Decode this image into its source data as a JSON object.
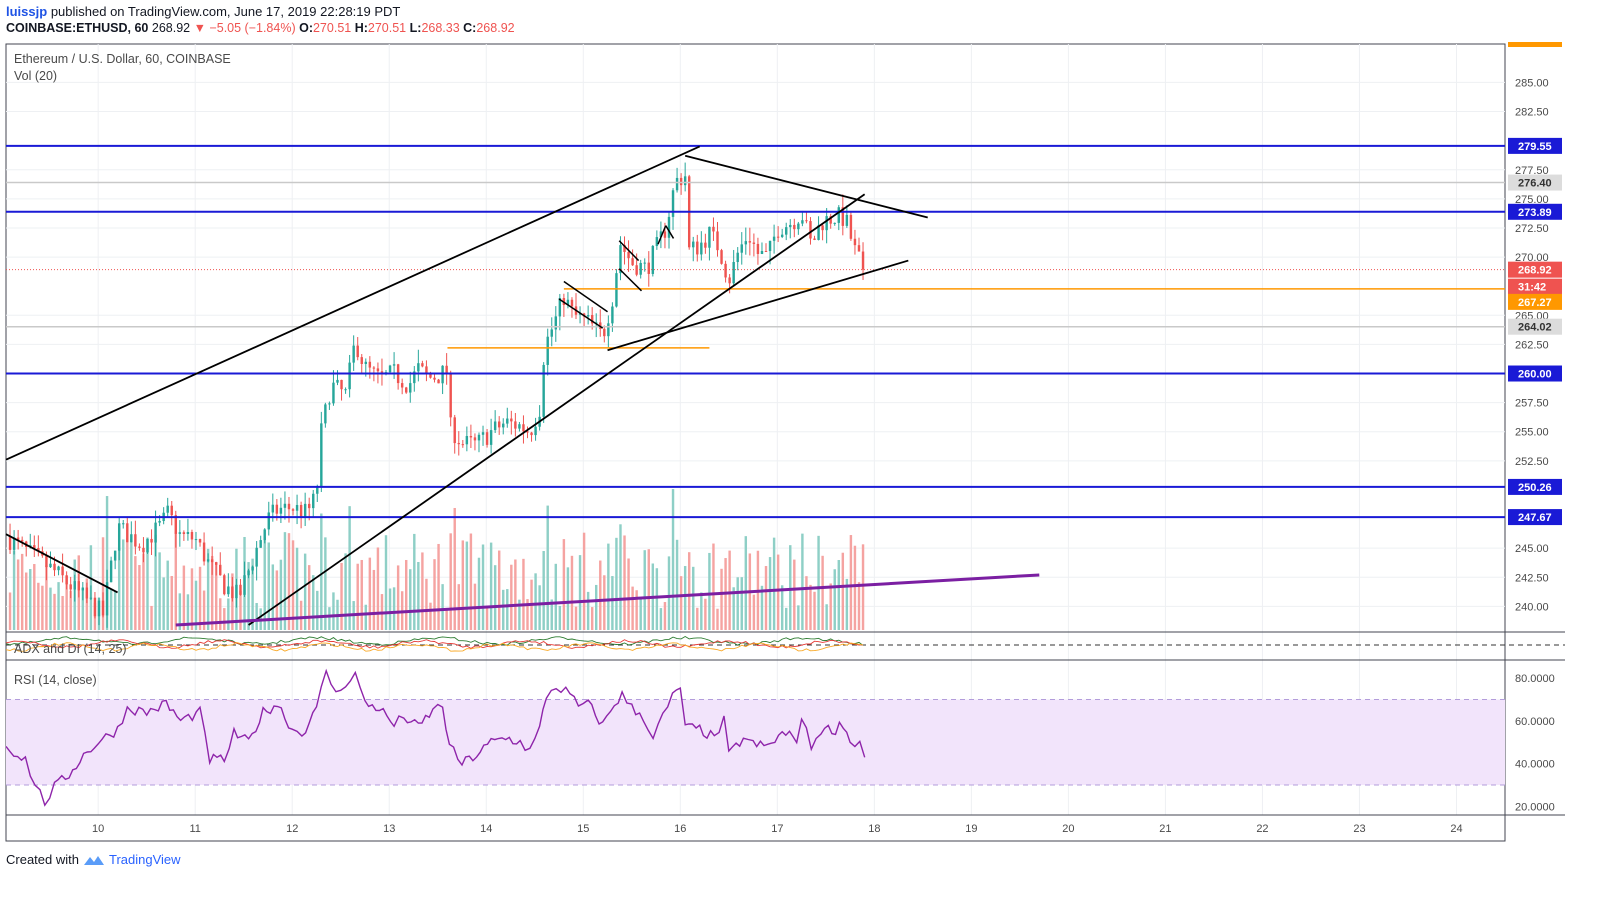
{
  "header": {
    "author": "luissjp",
    "published": "published on TradingView.com, June 17, 2019 22:28:19 PDT",
    "symbol_line": "COINBASE:ETHUSD, 60",
    "last": "268.92",
    "change": "▼ −5.05 (−1.84%)",
    "o_label": "O:",
    "o": "270.51",
    "h_label": "H:",
    "h": "270.51",
    "l_label": "L:",
    "l": "268.33",
    "c_label": "C:",
    "c": "268.92"
  },
  "footer": {
    "created_with": "Created with",
    "brand": "TradingView"
  },
  "colors": {
    "up": "#26a69a",
    "down": "#ef5350",
    "vol_up": "#8ecfc6",
    "vol_down": "#f5a3a1",
    "level": "#1a1ad6",
    "orange": "#ff9800",
    "purple": "#7b1fa2",
    "rsi": "#8e24aa",
    "rsi_band": "#f2e4fb"
  },
  "chart_data": {
    "type": "candlestick",
    "title": "Ethereum / U.S. Dollar, 60, COINBASE",
    "volume_label": "Vol (20)",
    "x_tick_labels": [
      "10",
      "11",
      "12",
      "13",
      "14",
      "15",
      "16",
      "17",
      "18",
      "19",
      "20",
      "21",
      "22",
      "23",
      "24"
    ],
    "x_days": [
      10,
      11,
      12,
      13,
      14,
      15,
      16,
      17,
      18,
      19,
      20,
      21,
      22,
      23,
      24
    ],
    "xlim_days": [
      9.05,
      24.5
    ],
    "price_ticks": [
      285.0,
      282.5,
      277.5,
      275.0,
      272.5,
      270.0,
      265.0,
      262.5,
      257.5,
      255.0,
      252.5,
      245.0,
      242.5,
      240.0
    ],
    "ylim": [
      237.8,
      288.3
    ],
    "horizontal_levels": [
      279.55,
      273.89,
      260.0,
      250.26,
      247.67
    ],
    "gray_levels": [
      276.4,
      264.02
    ],
    "orange_levels": [
      {
        "value": 267.27,
        "from_day": 14.8,
        "to_day": 24.5
      },
      {
        "value": 262.2,
        "from_day": 13.6,
        "to_day": 16.3
      }
    ],
    "price_labels": [
      {
        "text": "279.55",
        "value": 279.55,
        "style": "blue"
      },
      {
        "text": "276.40",
        "value": 276.4,
        "style": "gray"
      },
      {
        "text": "273.89",
        "value": 273.89,
        "style": "blue"
      },
      {
        "text": "268.92",
        "value": 268.92,
        "style": "red"
      },
      {
        "text": "31:42",
        "value": 268.92,
        "style": "red-timer"
      },
      {
        "text": "267.27",
        "value": 267.27,
        "style": "orange"
      },
      {
        "text": "264.02",
        "value": 264.02,
        "style": "gray"
      },
      {
        "text": "260.00",
        "value": 260.0,
        "style": "blue"
      },
      {
        "text": "250.26",
        "value": 250.26,
        "style": "blue"
      },
      {
        "text": "247.67",
        "value": 247.67,
        "style": "blue"
      }
    ],
    "last_price": 268.92,
    "trendlines": [
      {
        "from": [
          9.05,
          252.6
        ],
        "to": [
          16.2,
          279.5
        ],
        "color": "black"
      },
      {
        "from": [
          11.55,
          238.4
        ],
        "to": [
          17.9,
          275.4
        ],
        "color": "black"
      },
      {
        "from": [
          15.25,
          262.0
        ],
        "to": [
          18.35,
          269.7
        ],
        "color": "black"
      },
      {
        "from": [
          16.05,
          278.7
        ],
        "to": [
          18.55,
          273.4
        ],
        "color": "black"
      },
      {
        "from": [
          9.05,
          246.2
        ],
        "to": [
          10.2,
          241.2
        ],
        "color": "black"
      },
      {
        "from": [
          10.8,
          238.4
        ],
        "to": [
          19.7,
          242.7
        ],
        "color": "purple"
      }
    ],
    "flags": [
      [
        [
          14.8,
          267.9
        ],
        [
          15.25,
          265.3
        ]
      ],
      [
        [
          14.75,
          266.4
        ],
        [
          15.2,
          263.9
        ]
      ],
      [
        [
          15.37,
          271.4
        ],
        [
          15.57,
          269.7
        ]
      ],
      [
        [
          15.37,
          269.0
        ],
        [
          15.6,
          267.1
        ]
      ],
      [
        [
          15.77,
          271.1
        ],
        [
          15.85,
          272.7
        ]
      ],
      [
        [
          15.85,
          272.7
        ],
        [
          15.93,
          271.6
        ]
      ]
    ],
    "candles_hourly_close_path": [
      [
        9.05,
        246.0
      ],
      [
        9.3,
        244.5
      ],
      [
        9.55,
        243.0
      ],
      [
        9.75,
        241.5
      ],
      [
        10.05,
        239.3
      ],
      [
        10.2,
        246.8
      ],
      [
        10.45,
        245.3
      ],
      [
        10.65,
        247.0
      ],
      [
        10.72,
        248.0
      ],
      [
        10.85,
        246.0
      ],
      [
        11.0,
        245.8
      ],
      [
        11.15,
        243.5
      ],
      [
        11.3,
        241.8
      ],
      [
        11.45,
        240.8
      ],
      [
        11.6,
        244.2
      ],
      [
        11.75,
        247.5
      ],
      [
        11.85,
        248.3
      ],
      [
        12.0,
        248.5
      ],
      [
        12.15,
        248.0
      ],
      [
        12.25,
        249.5
      ],
      [
        12.3,
        255.0
      ],
      [
        12.4,
        259.0
      ],
      [
        12.55,
        258.2
      ],
      [
        12.65,
        262.8
      ],
      [
        12.75,
        260.5
      ],
      [
        12.9,
        259.5
      ],
      [
        13.05,
        260.0
      ],
      [
        13.2,
        259.0
      ],
      [
        13.3,
        260.4
      ],
      [
        13.4,
        259.6
      ],
      [
        13.5,
        259.8
      ],
      [
        13.6,
        260.2
      ],
      [
        13.62,
        255.5
      ],
      [
        13.75,
        254.0
      ],
      [
        13.9,
        253.9
      ],
      [
        14.05,
        255.0
      ],
      [
        14.2,
        255.8
      ],
      [
        14.35,
        255.5
      ],
      [
        14.45,
        255.0
      ],
      [
        14.55,
        257.0
      ],
      [
        14.6,
        262.3
      ],
      [
        14.7,
        264.3
      ],
      [
        14.8,
        266.6
      ],
      [
        14.9,
        265.0
      ],
      [
        15.05,
        264.4
      ],
      [
        15.2,
        263.2
      ],
      [
        15.3,
        266.5
      ],
      [
        15.38,
        271.2
      ],
      [
        15.5,
        269.5
      ],
      [
        15.65,
        269.0
      ],
      [
        15.75,
        270.7
      ],
      [
        15.85,
        272.5
      ],
      [
        15.95,
        276.5
      ],
      [
        16.05,
        277.0
      ],
      [
        16.08,
        270.5
      ],
      [
        16.2,
        271.0
      ],
      [
        16.3,
        272.0
      ],
      [
        16.4,
        270.8
      ],
      [
        16.5,
        268.0
      ],
      [
        16.6,
        270.5
      ],
      [
        16.7,
        272.0
      ],
      [
        16.8,
        270.3
      ],
      [
        16.9,
        270.0
      ],
      [
        17.0,
        272.5
      ],
      [
        17.15,
        273.0
      ],
      [
        17.25,
        273.8
      ],
      [
        17.35,
        271.0
      ],
      [
        17.45,
        273.0
      ],
      [
        17.6,
        273.5
      ],
      [
        17.7,
        273.3
      ],
      [
        17.8,
        270.5
      ],
      [
        17.9,
        268.92
      ]
    ],
    "volume_rel_max": 0.6,
    "adx_label": "ADX and DI (14, 25)",
    "rsi": {
      "label": "RSI (14, close)",
      "y_ticks": [
        80.0,
        60.0,
        40.0,
        20.0
      ],
      "y_tick_labels": [
        "80.0000",
        "60.0000",
        "40.0000",
        "20.0000"
      ],
      "ylim": [
        16,
        88
      ],
      "band": [
        30,
        70
      ],
      "values_path": [
        [
          9.05,
          48
        ],
        [
          9.25,
          42
        ],
        [
          9.35,
          30
        ],
        [
          9.45,
          22
        ],
        [
          9.55,
          29
        ],
        [
          9.7,
          35
        ],
        [
          9.85,
          44
        ],
        [
          10.0,
          50
        ],
        [
          10.2,
          56
        ],
        [
          10.3,
          66
        ],
        [
          10.5,
          64
        ],
        [
          10.7,
          68
        ],
        [
          10.85,
          60
        ],
        [
          11.05,
          64
        ],
        [
          11.15,
          42
        ],
        [
          11.3,
          42
        ],
        [
          11.4,
          54
        ],
        [
          11.55,
          50
        ],
        [
          11.7,
          64
        ],
        [
          11.85,
          68
        ],
        [
          12.0,
          56
        ],
        [
          12.1,
          54
        ],
        [
          12.25,
          65
        ],
        [
          12.35,
          84
        ],
        [
          12.45,
          72
        ],
        [
          12.55,
          78
        ],
        [
          12.65,
          82
        ],
        [
          12.75,
          68
        ],
        [
          12.9,
          66
        ],
        [
          13.05,
          58
        ],
        [
          13.15,
          62
        ],
        [
          13.3,
          57
        ],
        [
          13.45,
          65
        ],
        [
          13.55,
          67
        ],
        [
          13.62,
          48
        ],
        [
          13.75,
          40
        ],
        [
          13.9,
          44
        ],
        [
          14.05,
          50
        ],
        [
          14.2,
          52
        ],
        [
          14.35,
          50
        ],
        [
          14.45,
          46
        ],
        [
          14.55,
          56
        ],
        [
          14.62,
          72
        ],
        [
          14.72,
          76
        ],
        [
          14.82,
          74
        ],
        [
          14.95,
          67
        ],
        [
          15.05,
          68
        ],
        [
          15.2,
          58
        ],
        [
          15.32,
          68
        ],
        [
          15.4,
          72
        ],
        [
          15.5,
          66
        ],
        [
          15.62,
          62
        ],
        [
          15.72,
          52
        ],
        [
          15.82,
          62
        ],
        [
          15.92,
          71
        ],
        [
          16.0,
          76
        ],
        [
          16.05,
          57
        ],
        [
          16.2,
          56
        ],
        [
          16.35,
          52
        ],
        [
          16.45,
          60
        ],
        [
          16.5,
          44
        ],
        [
          16.65,
          52
        ],
        [
          16.75,
          49
        ],
        [
          16.9,
          48
        ],
        [
          17.05,
          54
        ],
        [
          17.2,
          52
        ],
        [
          17.25,
          61
        ],
        [
          17.35,
          48
        ],
        [
          17.45,
          56
        ],
        [
          17.6,
          56
        ],
        [
          17.68,
          59
        ],
        [
          17.75,
          50
        ],
        [
          17.85,
          50
        ],
        [
          17.9,
          43
        ]
      ]
    }
  }
}
